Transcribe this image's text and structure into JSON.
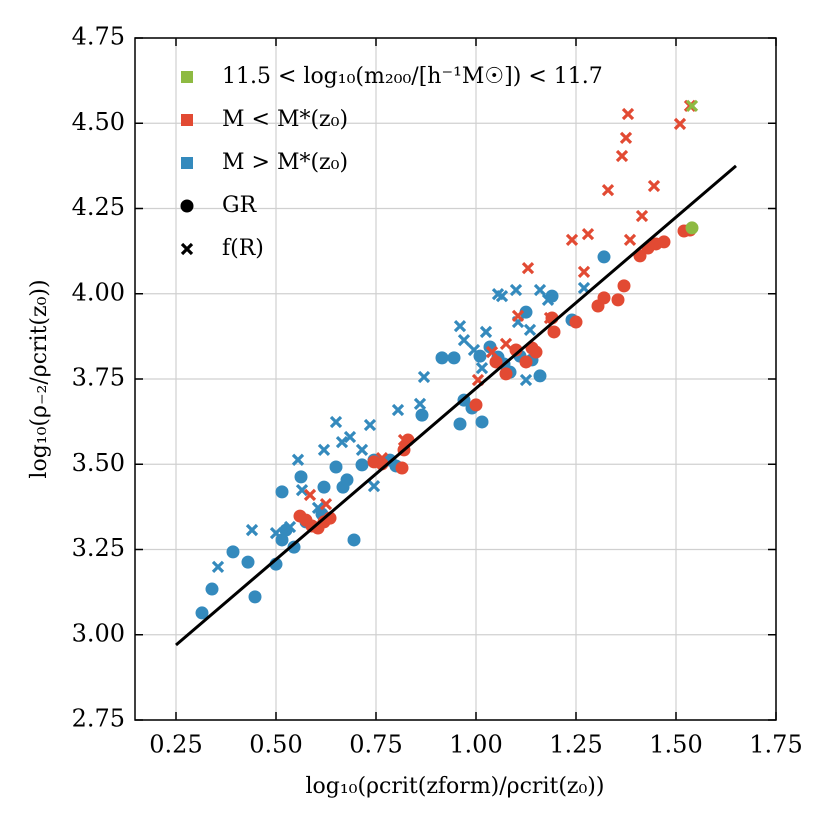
{
  "chart_data": {
    "type": "scatter",
    "xlabel": "log₁₀(ρcrit(zform)/ρcrit(z₀))",
    "ylabel": "log₁₀(ρ₋₂/ρcrit(z₀))",
    "xlim": [
      0.1475,
      1.75
    ],
    "ylim": [
      2.75,
      4.75
    ],
    "xticks": [
      0.25,
      {
        "value": 0.5,
        "label": "0.50"
      },
      0.75,
      {
        "value": 1.0,
        "label": "1.00"
      },
      1.25,
      {
        "value": 1.5,
        "label": "1.50"
      },
      1.75
    ],
    "yticks": [
      2.75,
      {
        "value": 3.0,
        "label": "3.00"
      },
      3.25,
      {
        "value": 3.5,
        "label": "3.50"
      },
      3.75,
      {
        "value": 4.0,
        "label": "4.00"
      },
      4.25,
      {
        "value": 4.5,
        "label": "4.50"
      },
      4.75
    ],
    "grid": true,
    "legend_loc": "upper-left",
    "legend": [
      {
        "label": "11.5 < log₁₀(m₂₀₀/[h⁻¹M☉]) < 11.7",
        "color": "#8eba42",
        "marker": "s"
      },
      {
        "label": "M < M*(z₀)",
        "color": "#e24a33",
        "marker": "s"
      },
      {
        "label": "M > M*(z₀)",
        "color": "#348abd",
        "marker": "s"
      },
      {
        "label": "GR",
        "color": "#000000",
        "marker": "o"
      },
      {
        "label": "f(R)",
        "color": "#000000",
        "marker": "x"
      }
    ],
    "series": [
      {
        "color": "#348abd",
        "marker": "o",
        "x": [
          0.315,
          0.34,
          0.3925,
          0.43,
          0.4475,
          0.5,
          0.515,
          0.515,
          0.525,
          0.545,
          0.5625,
          0.575,
          0.615,
          0.62,
          0.65,
          0.6675,
          0.6775,
          0.695,
          0.715,
          0.745,
          0.785,
          0.8,
          0.865,
          0.915,
          0.945,
          0.96,
          0.97,
          0.99,
          1.01,
          1.015,
          1.035,
          1.055,
          1.07,
          1.085,
          1.11,
          1.125,
          1.14,
          1.16,
          1.19,
          1.24,
          1.32
        ],
        "y": [
          3.064,
          3.134,
          3.243,
          3.213,
          3.111,
          3.207,
          3.419,
          3.278,
          3.307,
          3.257,
          3.463,
          3.331,
          3.354,
          3.433,
          3.492,
          3.433,
          3.454,
          3.278,
          3.498,
          3.512,
          3.512,
          3.495,
          3.644,
          3.812,
          3.812,
          3.618,
          3.688,
          3.665,
          3.817,
          3.624,
          3.844,
          3.814,
          3.794,
          3.77,
          3.817,
          3.946,
          3.806,
          3.759,
          3.993,
          3.923,
          4.108
        ]
      },
      {
        "color": "#348abd",
        "marker": "x",
        "x": [
          0.355,
          0.44,
          0.5,
          0.535,
          0.555,
          0.565,
          0.605,
          0.62,
          0.65,
          0.665,
          0.685,
          0.715,
          0.735,
          0.745,
          0.805,
          0.86,
          0.87,
          0.96,
          0.97,
          0.995,
          1.015,
          1.025,
          1.055,
          1.065,
          1.1,
          1.105,
          1.125,
          1.135,
          1.16,
          1.18,
          1.27
        ],
        "y": [
          3.199,
          3.307,
          3.298,
          3.316,
          3.513,
          3.424,
          3.372,
          3.542,
          3.624,
          3.565,
          3.58,
          3.542,
          3.615,
          3.436,
          3.659,
          3.677,
          3.756,
          3.905,
          3.864,
          3.835,
          3.782,
          3.888,
          3.999,
          3.993,
          4.011,
          3.917,
          3.747,
          3.894,
          4.011,
          3.982,
          4.017
        ]
      },
      {
        "color": "#e24a33",
        "marker": "o",
        "x": [
          0.56,
          0.575,
          0.59,
          0.605,
          0.62,
          0.635,
          0.745,
          0.765,
          0.815,
          0.82,
          0.83,
          1.0,
          1.05,
          1.075,
          1.1,
          1.125,
          1.14,
          1.15,
          1.19,
          1.195,
          1.25,
          1.305,
          1.32,
          1.355,
          1.37,
          1.41,
          1.43,
          1.45,
          1.47,
          1.52,
          1.535
        ],
        "y": [
          3.348,
          3.336,
          3.319,
          3.313,
          3.331,
          3.342,
          3.507,
          3.501,
          3.489,
          3.542,
          3.571,
          3.674,
          3.8,
          3.765,
          3.835,
          3.8,
          3.841,
          3.829,
          3.929,
          3.888,
          3.917,
          3.964,
          3.988,
          3.982,
          4.023,
          4.111,
          4.134,
          4.146,
          4.152,
          4.184,
          4.187
        ]
      },
      {
        "color": "#e24a33",
        "marker": "x",
        "x": [
          0.585,
          0.625,
          0.765,
          0.82,
          1.005,
          1.04,
          1.075,
          1.105,
          1.13,
          1.185,
          1.24,
          1.27,
          1.28,
          1.33,
          1.365,
          1.375,
          1.38,
          1.385,
          1.415,
          1.445,
          1.51,
          1.535
        ],
        "y": [
          3.41,
          3.383,
          3.518,
          3.571,
          3.747,
          3.829,
          3.853,
          3.935,
          4.075,
          3.929,
          4.158,
          4.064,
          4.175,
          4.304,
          4.404,
          4.457,
          4.527,
          4.158,
          4.228,
          4.316,
          4.498,
          4.551
        ]
      },
      {
        "color": "#8eba42",
        "marker": "o",
        "x": [
          1.54
        ],
        "y": [
          4.193
        ]
      },
      {
        "color": "#8eba42",
        "marker": "x",
        "x": [
          1.54
        ],
        "y": [
          4.551
        ]
      }
    ],
    "fit_line": {
      "color": "#000000",
      "x": [
        0.25,
        1.65
      ],
      "y": [
        2.97,
        4.375
      ]
    }
  }
}
